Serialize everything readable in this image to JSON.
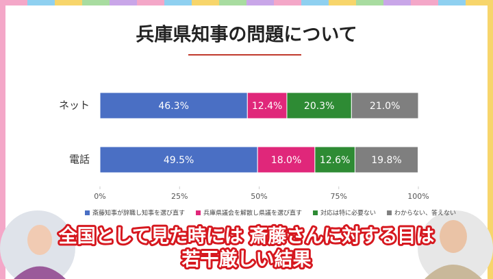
{
  "chart_data": {
    "type": "stacked-barh",
    "title": "兵庫県知事の問題について",
    "categories": [
      "ネット",
      "電話"
    ],
    "series": [
      {
        "name": "斎藤知事が辞職し知事を選び直す",
        "color": "#4a6fc4",
        "values": [
          46.3,
          49.5
        ],
        "value_labels": [
          "46.3%",
          "49.5%"
        ]
      },
      {
        "name": "兵庫県議会を解散し県議を選び直す",
        "color": "#e0277a",
        "values": [
          12.4,
          18.0
        ],
        "value_labels": [
          "12.4%",
          "18.0%"
        ]
      },
      {
        "name": "対応は特に必要ない",
        "color": "#2e8b34",
        "values": [
          20.3,
          12.6
        ],
        "value_labels": [
          "20.3%",
          "12.6%"
        ]
      },
      {
        "name": "わからない、答えない",
        "color": "#7f7f7f",
        "values": [
          21.0,
          19.8
        ],
        "value_labels": [
          "21.0%",
          "19.8%"
        ]
      }
    ],
    "xlim": [
      0,
      100
    ],
    "xticks": [
      {
        "value": 0,
        "label": "0%"
      },
      {
        "value": 25,
        "label": "25%"
      },
      {
        "value": 50,
        "label": "50%"
      },
      {
        "value": 75,
        "label": "75%"
      },
      {
        "value": 100,
        "label": "100%"
      }
    ],
    "legend": "bottom"
  },
  "caption": [
    "全国として見た時には 斎藤さんに対する目は",
    "若干厳しい結果"
  ]
}
